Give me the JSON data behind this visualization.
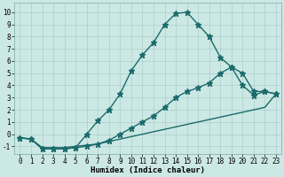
{
  "xlabel": "Humidex (Indice chaleur)",
  "background_color": "#cce8e4",
  "grid_color": "#b0d4d0",
  "line_color": "#1a6b6b",
  "x_ticks": [
    0,
    1,
    2,
    3,
    4,
    5,
    6,
    7,
    8,
    9,
    10,
    11,
    12,
    13,
    14,
    15,
    16,
    17,
    18,
    19,
    20,
    21,
    22,
    23
  ],
  "y_ticks": [
    -1,
    0,
    1,
    2,
    3,
    4,
    5,
    6,
    7,
    8,
    9,
    10
  ],
  "ylim": [
    -1.6,
    10.8
  ],
  "xlim": [
    -0.5,
    23.5
  ],
  "line1_x": [
    0,
    1,
    2,
    3,
    4,
    5,
    6,
    7,
    8,
    9,
    10,
    11,
    12,
    13,
    14,
    15,
    16,
    17,
    18,
    19,
    20,
    21,
    22,
    23
  ],
  "line1_y": [
    -0.3,
    -0.4,
    -1.2,
    -1.2,
    -1.2,
    -1.1,
    0.0,
    1.1,
    2.0,
    3.3,
    5.2,
    6.5,
    7.5,
    9.0,
    9.9,
    10.0,
    9.0,
    8.0,
    6.3,
    5.5,
    4.0,
    3.2,
    3.5,
    3.3
  ],
  "line2_x": [
    0,
    1,
    2,
    3,
    4,
    5,
    6,
    7,
    8,
    9,
    10,
    11,
    12,
    13,
    14,
    15,
    16,
    17,
    18,
    19,
    20,
    21,
    22,
    23
  ],
  "line2_y": [
    -0.3,
    -0.4,
    -1.2,
    -1.2,
    -1.2,
    -1.1,
    -1.0,
    -0.8,
    -0.5,
    0.0,
    0.5,
    1.0,
    1.5,
    2.2,
    3.0,
    3.5,
    3.8,
    4.2,
    5.0,
    5.5,
    5.0,
    3.5,
    3.5,
    3.3
  ],
  "line3_x": [
    0,
    1,
    2,
    3,
    4,
    5,
    6,
    7,
    8,
    9,
    10,
    11,
    12,
    13,
    14,
    15,
    16,
    17,
    18,
    19,
    20,
    21,
    22,
    23
  ],
  "line3_y": [
    -0.3,
    -0.4,
    -1.1,
    -1.1,
    -1.1,
    -1.0,
    -0.9,
    -0.8,
    -0.6,
    -0.4,
    -0.2,
    0.0,
    0.2,
    0.4,
    0.6,
    0.8,
    1.0,
    1.2,
    1.4,
    1.6,
    1.8,
    2.0,
    2.2,
    3.3
  ],
  "marker_style": "o",
  "marker_size": 3.5,
  "line_width": 1.0,
  "tick_fontsize": 5.5,
  "xlabel_fontsize": 6.5
}
